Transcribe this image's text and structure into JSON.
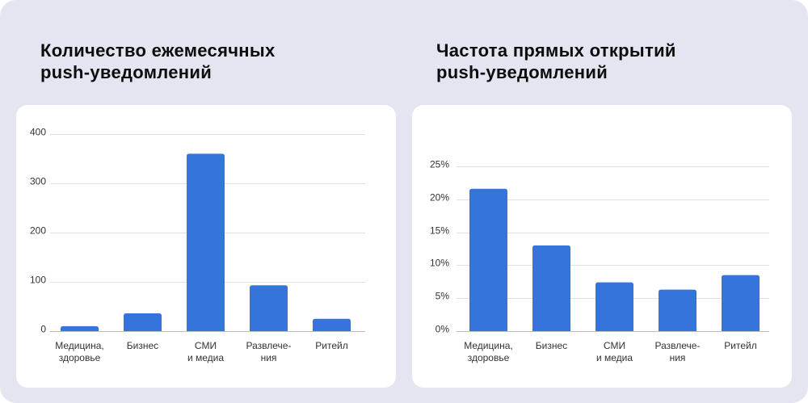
{
  "colors": {
    "page_background": "#E4E5F1",
    "card_background": "#FFFFFF",
    "bar": "#3574DA",
    "gridline": "#E0E0E0",
    "axis_baseline": "#BDBDBD",
    "title_text": "#0D0D0D",
    "label_text": "#333333"
  },
  "chart_data": [
    {
      "type": "bar",
      "title": "Количество ежемесячных\npush-уведомлений",
      "xlabel": "",
      "ylabel": "",
      "categories": [
        "Медицина,\nздоровье",
        "Бизнес",
        "СМИ\nи медиа",
        "Развлече-\nния",
        "Ритейл"
      ],
      "values": [
        10,
        36,
        360,
        93,
        25
      ],
      "ylim": [
        0,
        400
      ],
      "yticks": [
        0,
        100,
        200,
        300,
        400
      ],
      "ytick_labels": [
        "0",
        "100",
        "200",
        "300",
        "400"
      ],
      "grid": true
    },
    {
      "type": "bar",
      "title": "Частота прямых открытий\npush-уведомлений",
      "xlabel": "",
      "ylabel": "",
      "categories": [
        "Медицина,\nздоровье",
        "Бизнес",
        "СМИ\nи медиа",
        "Развлече-\nния",
        "Ритейл"
      ],
      "values": [
        21.6,
        13.0,
        7.4,
        6.3,
        8.5
      ],
      "ylim": [
        0,
        25
      ],
      "yticks": [
        0,
        5,
        10,
        15,
        20,
        25
      ],
      "ytick_labels": [
        "0%",
        "5%",
        "10%",
        "15%",
        "20%",
        "25%"
      ],
      "grid": true
    }
  ]
}
